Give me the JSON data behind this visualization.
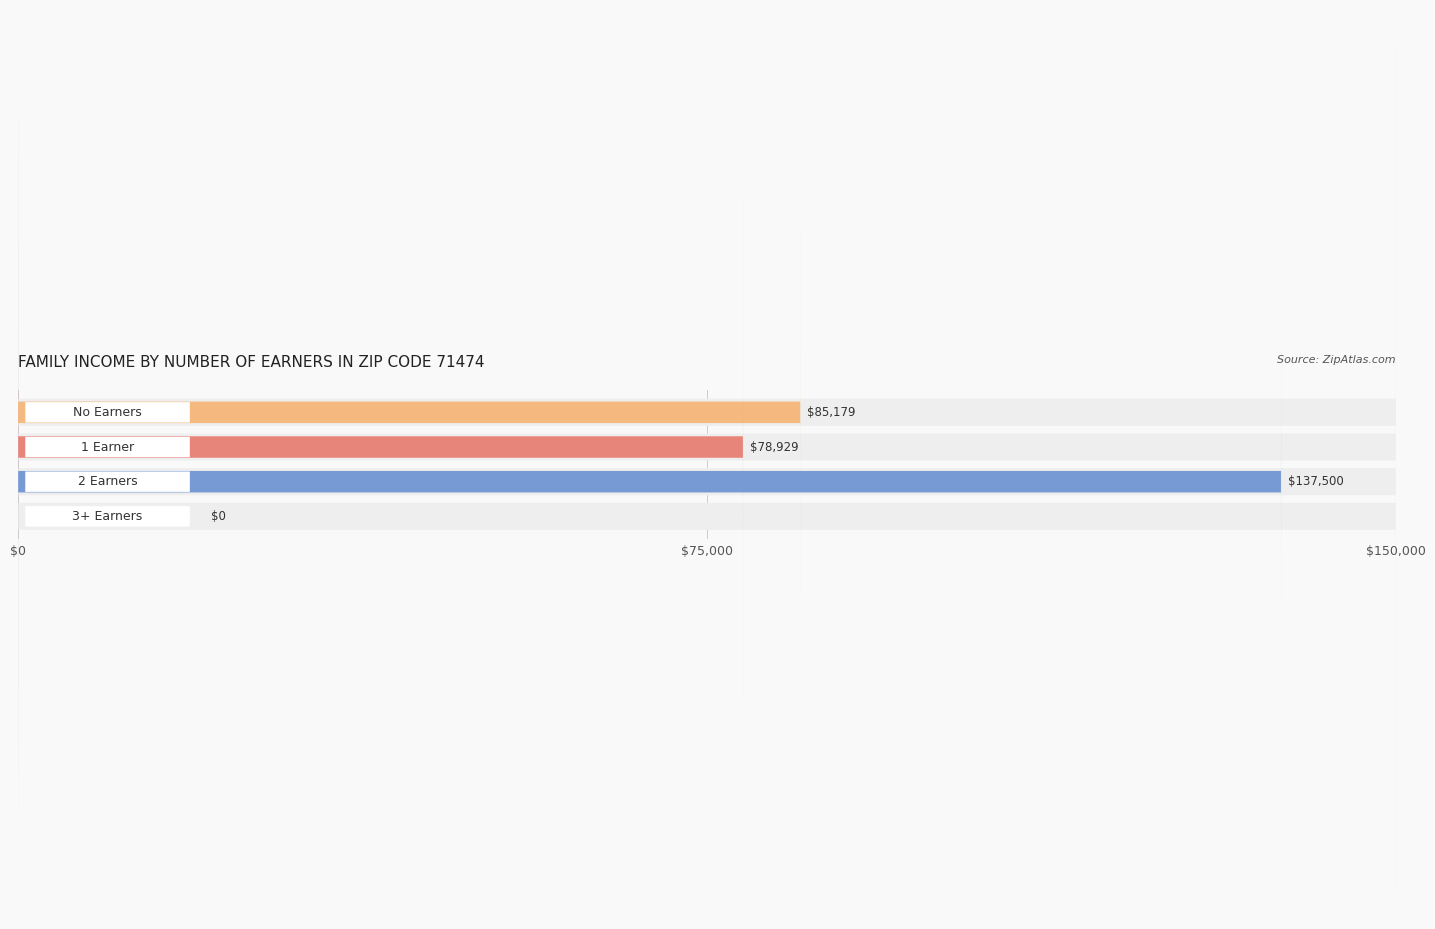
{
  "title": "FAMILY INCOME BY NUMBER OF EARNERS IN ZIP CODE 71474",
  "source": "Source: ZipAtlas.com",
  "categories": [
    "No Earners",
    "1 Earner",
    "2 Earners",
    "3+ Earners"
  ],
  "values": [
    85179,
    78929,
    137500,
    0
  ],
  "value_labels": [
    "$85,179",
    "$78,929",
    "$137,500",
    "$0"
  ],
  "bar_colors": [
    "#f5b97f",
    "#e8857a",
    "#7799d4",
    "#c9a8d4"
  ],
  "bar_bg_color": "#eeeeee",
  "label_bg_color": "#ffffff",
  "xlim": [
    0,
    150000
  ],
  "xticks": [
    0,
    75000,
    150000
  ],
  "xtick_labels": [
    "$0",
    "$75,000",
    "$150,000"
  ],
  "title_fontsize": 11,
  "source_fontsize": 8,
  "tick_fontsize": 9,
  "bar_label_fontsize": 8.5,
  "category_fontsize": 9,
  "fig_width": 14.06,
  "fig_height": 2.33,
  "background_color": "#f9f9f9"
}
